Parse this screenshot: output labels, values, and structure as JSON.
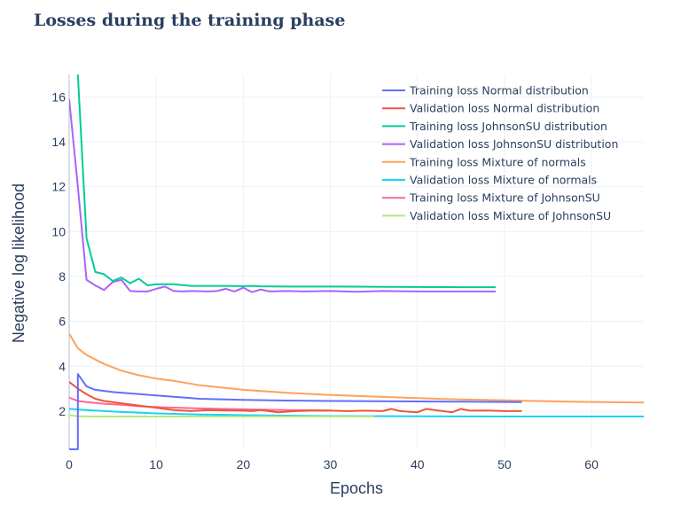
{
  "page": {
    "title": "Losses during the training phase"
  },
  "chart_data": {
    "type": "line",
    "title": "Losses during the training phase",
    "xlabel": "Epochs",
    "ylabel": "Negative log likelihood",
    "xlim": [
      0,
      66
    ],
    "ylim": [
      0.3,
      17
    ],
    "xticks": [
      0,
      10,
      20,
      30,
      40,
      50,
      60
    ],
    "yticks": [
      2,
      4,
      6,
      8,
      10,
      12,
      14,
      16
    ],
    "grid": true,
    "legend_position": "top-right",
    "series": [
      {
        "name": "Training loss Normal distribution",
        "color": "#636efa",
        "x": [
          0,
          1,
          1,
          2,
          3,
          5,
          10,
          15,
          20,
          25,
          30,
          35,
          40,
          45,
          50,
          52
        ],
        "y": [
          0.3,
          0.3,
          3.65,
          3.1,
          2.95,
          2.85,
          2.7,
          2.55,
          2.5,
          2.47,
          2.45,
          2.44,
          2.43,
          2.42,
          2.41,
          2.4
        ]
      },
      {
        "name": "Validation loss Normal distribution",
        "color": "#ef553b",
        "x": [
          0,
          1,
          2,
          3,
          4,
          6,
          8,
          10,
          12,
          14,
          16,
          18,
          20,
          21,
          22,
          24,
          26,
          28,
          30,
          32,
          34,
          36,
          37,
          38,
          40,
          41,
          42,
          44,
          45,
          46,
          48,
          50,
          52
        ],
        "y": [
          3.3,
          3.0,
          2.75,
          2.55,
          2.45,
          2.35,
          2.25,
          2.15,
          2.05,
          2.0,
          2.05,
          2.03,
          2.02,
          2.0,
          2.05,
          1.95,
          2.0,
          2.03,
          2.02,
          2.0,
          2.02,
          2.0,
          2.1,
          2.0,
          1.95,
          2.1,
          2.05,
          1.95,
          2.1,
          2.02,
          2.03,
          2.0,
          2.0
        ]
      },
      {
        "name": "Training loss JohnsonSU distribution",
        "color": "#00cc96",
        "x": [
          1,
          2,
          3,
          4,
          5,
          6,
          7,
          8,
          9,
          10,
          11,
          12,
          14,
          16,
          18,
          20,
          21,
          22,
          25,
          30,
          35,
          40,
          45,
          49
        ],
        "y": [
          17,
          9.7,
          8.2,
          8.1,
          7.8,
          7.95,
          7.7,
          7.9,
          7.6,
          7.65,
          7.65,
          7.65,
          7.58,
          7.58,
          7.58,
          7.57,
          7.58,
          7.56,
          7.55,
          7.55,
          7.54,
          7.53,
          7.52,
          7.52
        ]
      },
      {
        "name": "Validation loss JohnsonSU distribution",
        "color": "#ab63fa",
        "x": [
          0,
          1,
          2,
          3,
          4,
          5,
          6,
          7,
          8,
          9,
          10,
          11,
          12,
          13,
          14,
          16,
          17,
          18,
          19,
          20,
          21,
          22,
          23,
          25,
          27,
          30,
          33,
          36,
          40,
          45,
          49
        ],
        "y": [
          15.9,
          12.0,
          7.85,
          7.6,
          7.4,
          7.75,
          7.85,
          7.35,
          7.33,
          7.33,
          7.45,
          7.55,
          7.35,
          7.33,
          7.35,
          7.33,
          7.35,
          7.45,
          7.33,
          7.5,
          7.3,
          7.42,
          7.33,
          7.35,
          7.33,
          7.35,
          7.32,
          7.35,
          7.33,
          7.33,
          7.33
        ]
      },
      {
        "name": "Training loss Mixture of normals",
        "color": "#ffa15a",
        "x": [
          0,
          1,
          2,
          3,
          4,
          6,
          8,
          10,
          12,
          15,
          20,
          25,
          30,
          35,
          40,
          45,
          50,
          55,
          60,
          66
        ],
        "y": [
          5.45,
          4.8,
          4.5,
          4.3,
          4.1,
          3.8,
          3.6,
          3.45,
          3.35,
          3.15,
          2.95,
          2.82,
          2.72,
          2.65,
          2.58,
          2.52,
          2.48,
          2.44,
          2.41,
          2.38
        ]
      },
      {
        "name": "Validation loss Mixture of normals",
        "color": "#19d3f3",
        "x": [
          0,
          2,
          5,
          10,
          15,
          20,
          30,
          40,
          50,
          60,
          66
        ],
        "y": [
          2.1,
          2.05,
          1.98,
          1.9,
          1.85,
          1.82,
          1.78,
          1.77,
          1.76,
          1.76,
          1.76
        ]
      },
      {
        "name": "Training loss Mixture of JohnsonSU",
        "color": "#ff6692",
        "x": [
          0,
          1,
          2,
          4,
          6,
          8,
          10,
          15,
          20,
          25,
          30
        ],
        "y": [
          2.6,
          2.45,
          2.4,
          2.33,
          2.28,
          2.22,
          2.18,
          2.12,
          2.08,
          2.05,
          2.03
        ]
      },
      {
        "name": "Validation loss Mixture of JohnsonSU",
        "color": "#b6e880",
        "x": [
          0,
          1,
          3,
          6,
          10,
          15,
          20,
          25,
          30,
          35
        ],
        "y": [
          1.82,
          1.77,
          1.76,
          1.76,
          1.76,
          1.76,
          1.76,
          1.76,
          1.76,
          1.76
        ]
      }
    ]
  }
}
